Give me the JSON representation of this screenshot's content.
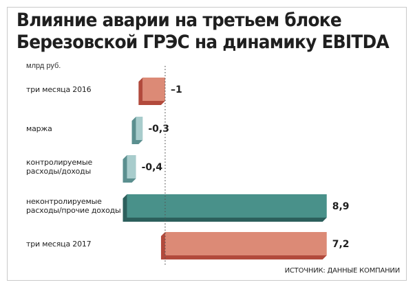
{
  "title_line1": "Влияние аварии на третьем блоке",
  "title_line2": "Березовской ГРЭС на динамику EBITDA",
  "unit": "млрд руб.",
  "source": "ИСТОЧНИК: ДАННЫЕ КОМПАНИИ",
  "colors": {
    "salmon": "#dc8a76",
    "salmon_dark": "#b24a3c",
    "teal": "#49918a",
    "teal_dark": "#2c5f5c",
    "light_teal": "#a8cccc",
    "light_teal_dark": "#5b8f8f"
  },
  "chart_data": {
    "type": "bar",
    "orientation": "horizontal",
    "style": "waterfall",
    "categories": [
      [
        "три месяца 2016"
      ],
      [
        "маржа"
      ],
      [
        "контролируемые",
        "расходы/доходы"
      ],
      [
        "неконтролируемые",
        "расходы/прочие доходы"
      ],
      [
        "три месяца 2017"
      ]
    ],
    "values": [
      -1,
      -0.3,
      -0.4,
      8.9,
      7.2
    ],
    "value_labels": [
      "–1",
      "-0,3",
      "-0,4",
      "8,9",
      "7,2"
    ],
    "bar_colors": [
      "salmon",
      "light_teal",
      "light_teal",
      "teal",
      "salmon"
    ],
    "xlim": [
      -1.9,
      9.6
    ],
    "grid": false,
    "legend": "none"
  }
}
